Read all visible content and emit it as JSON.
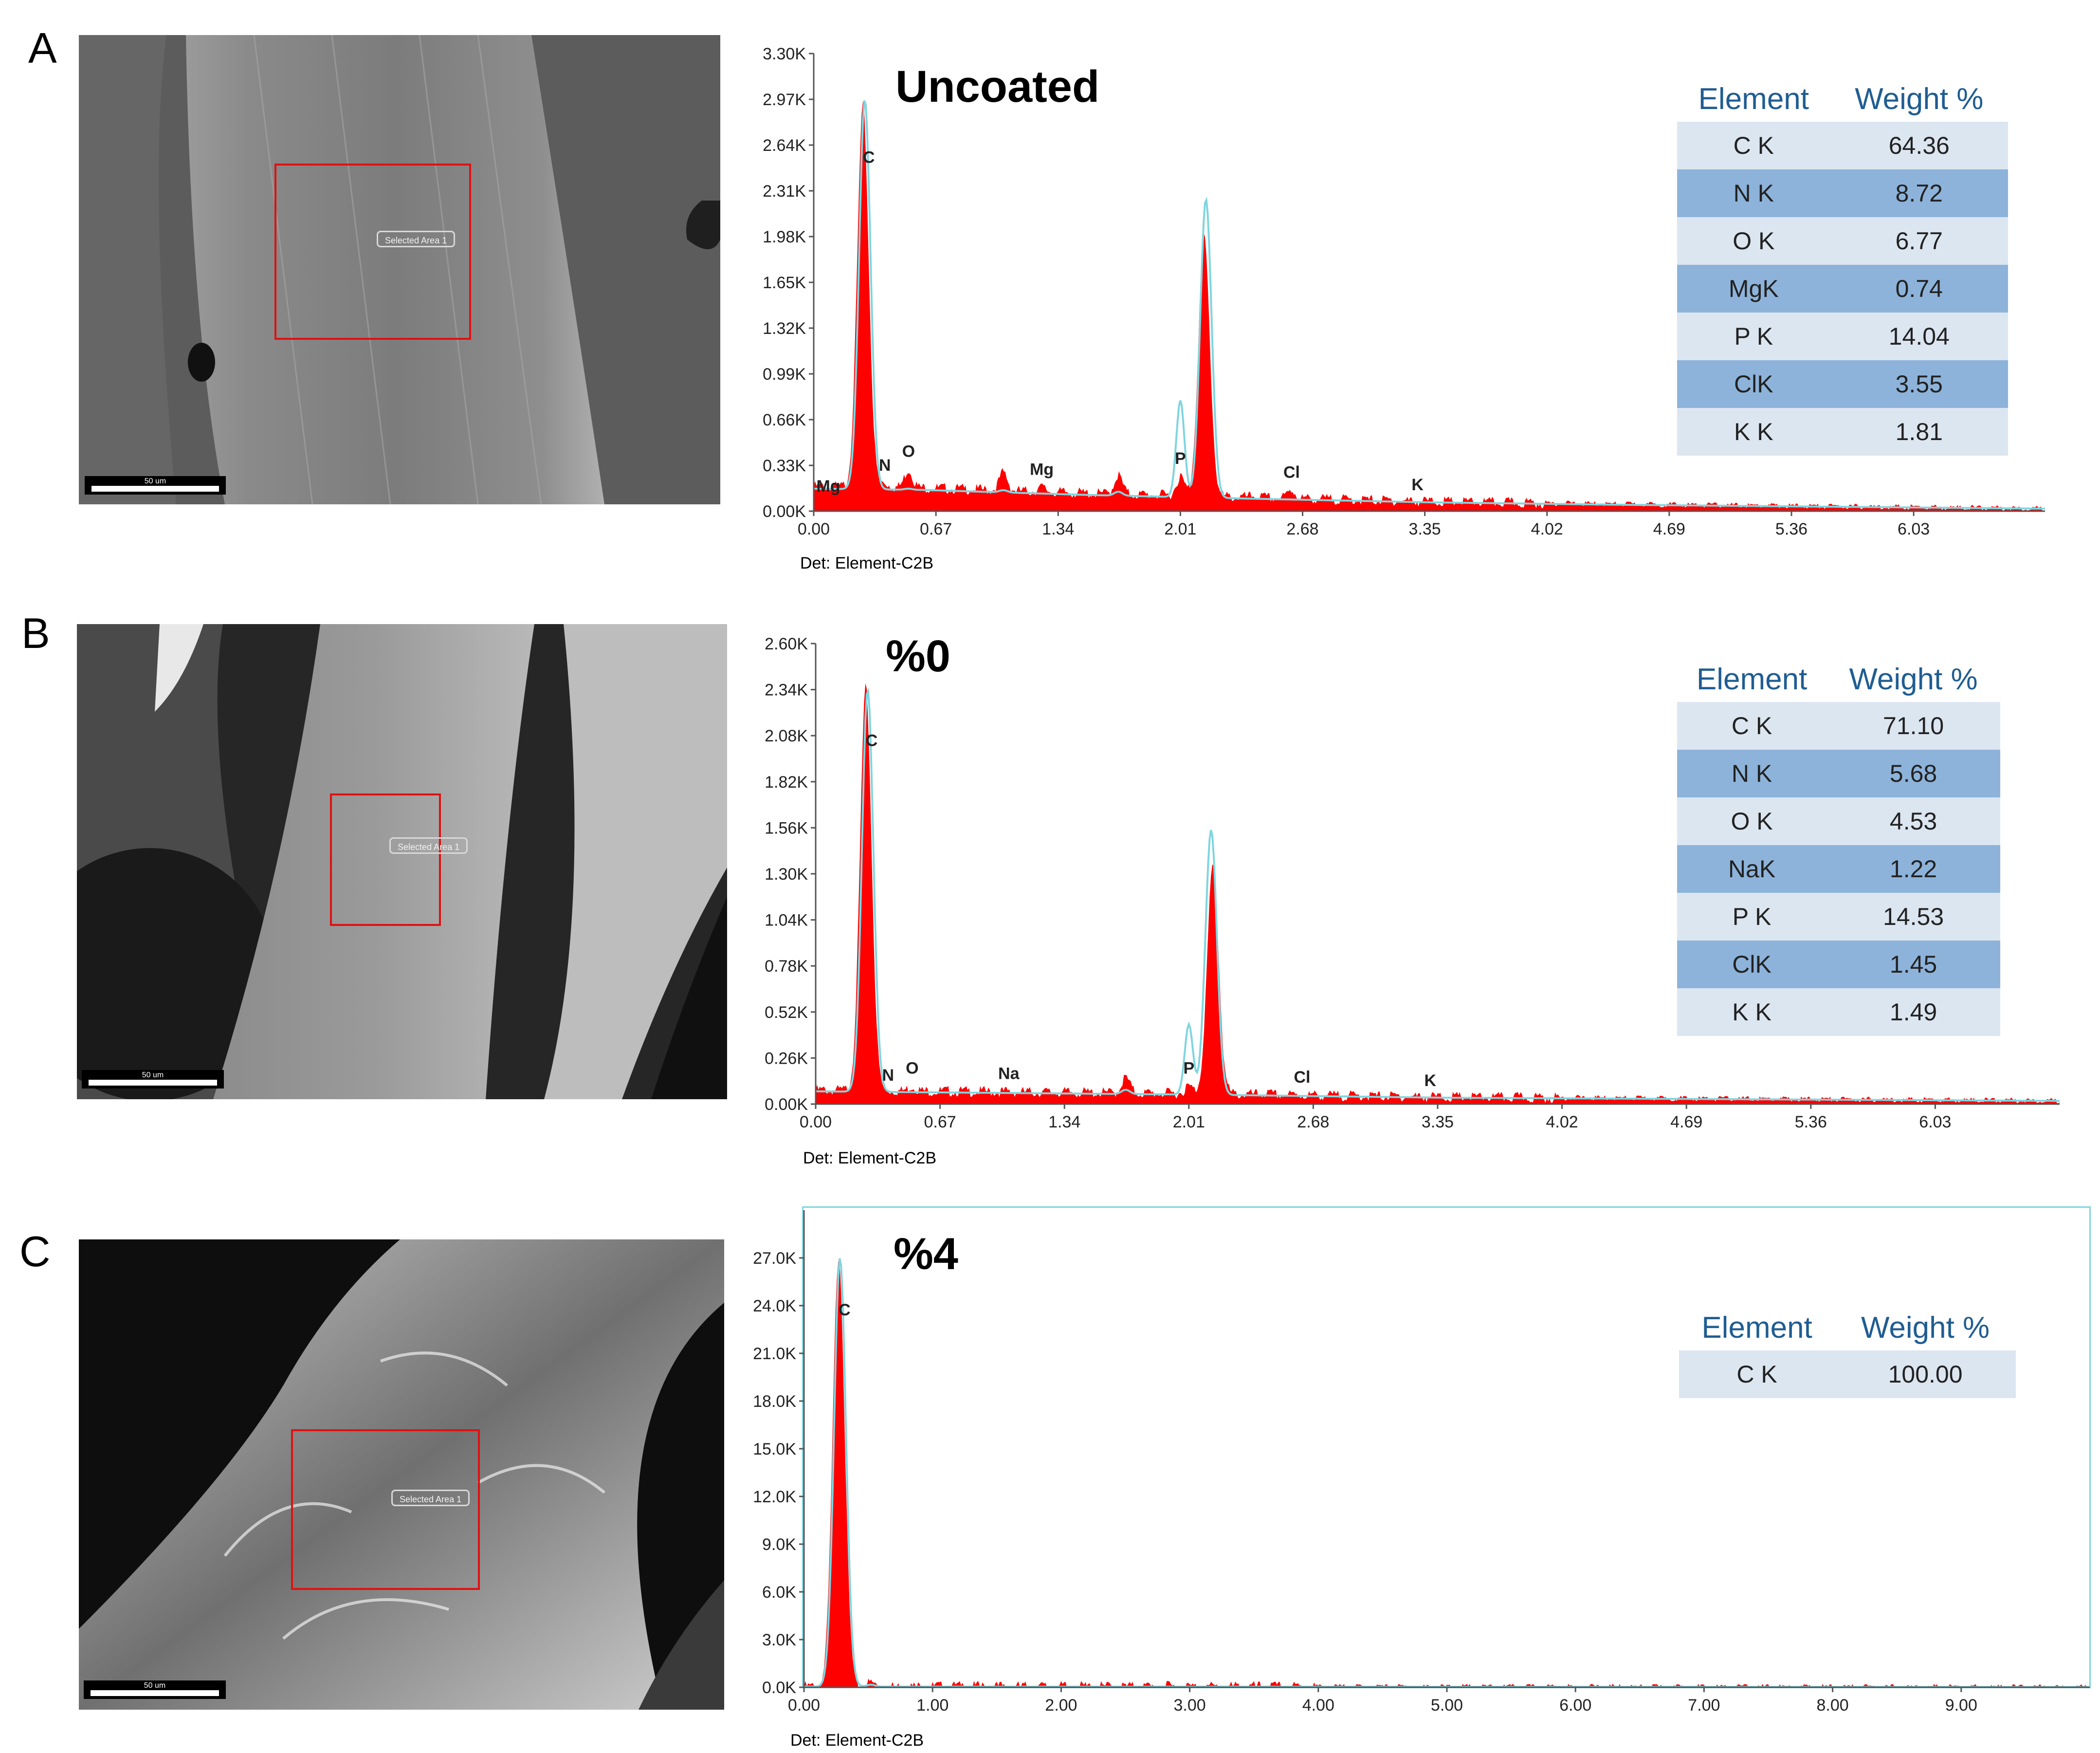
{
  "panels": [
    {
      "letter": "A",
      "sem_image": {
        "tag": "Selected Area 1",
        "scale": "50 um"
      },
      "spectrum_label": "Uncoated",
      "detector": "Det: Element-C2B",
      "table_header": {
        "element": "Element",
        "weight": "Weight %"
      },
      "table_rows": [
        {
          "element": "C K",
          "weight": "64.36"
        },
        {
          "element": "N K",
          "weight": "8.72"
        },
        {
          "element": "O K",
          "weight": "6.77"
        },
        {
          "element": "MgK",
          "weight": "0.74"
        },
        {
          "element": "P K",
          "weight": "14.04"
        },
        {
          "element": "ClK",
          "weight": "3.55"
        },
        {
          "element": "K K",
          "weight": "1.81"
        }
      ]
    },
    {
      "letter": "B",
      "sem_image": {
        "tag": "Selected Area 1",
        "scale": "50 um"
      },
      "spectrum_label": "%0",
      "detector": "Det: Element-C2B",
      "table_header": {
        "element": "Element",
        "weight": "Weight %"
      },
      "table_rows": [
        {
          "element": "C K",
          "weight": "71.10"
        },
        {
          "element": "N K",
          "weight": "5.68"
        },
        {
          "element": "O K",
          "weight": "4.53"
        },
        {
          "element": "NaK",
          "weight": "1.22"
        },
        {
          "element": "P K",
          "weight": "14.53"
        },
        {
          "element": "ClK",
          "weight": "1.45"
        },
        {
          "element": "K K",
          "weight": "1.49"
        }
      ]
    },
    {
      "letter": "C",
      "sem_image": {
        "tag": "Selected Area 1",
        "scale": "50 um"
      },
      "spectrum_label": "%4",
      "detector": "Det: Element-C2B",
      "table_header": {
        "element": "Element",
        "weight": "Weight %"
      },
      "table_rows": [
        {
          "element": "C K",
          "weight": "100.00"
        }
      ]
    }
  ],
  "colors": {
    "spectrum_fill": "#ff0000",
    "overlay_line": "#7fd5df",
    "header_text": "#1f5d92",
    "row_light": "#dce6f1",
    "row_dark": "#8db3da",
    "selection_box": "#e01010"
  },
  "chart_data": [
    {
      "type": "area",
      "title": "Uncoated",
      "xlabel": "",
      "ylabel": "",
      "xlim": [
        0,
        6.75
      ],
      "ylim": [
        0,
        3.3
      ],
      "x_ticks": [
        0.0,
        0.67,
        1.34,
        2.01,
        2.68,
        3.35,
        4.02,
        4.69,
        5.36,
        6.03
      ],
      "x_tick_labels": [
        "0.00",
        "0.67",
        "1.34",
        "2.01",
        "2.68",
        "3.35",
        "4.02",
        "4.69",
        "5.36",
        "6.03"
      ],
      "y_ticks": [
        0,
        0.33,
        0.66,
        0.99,
        1.32,
        1.65,
        1.98,
        2.31,
        2.64,
        2.97,
        3.3
      ],
      "y_tick_labels": [
        "0.00K",
        "0.33K",
        "0.66K",
        "0.99K",
        "1.32K",
        "1.65K",
        "1.98K",
        "2.31K",
        "2.64K",
        "2.97K",
        "3.30K"
      ],
      "peaks": [
        {
          "label": "Mg",
          "x": 0.08,
          "y": 0.05
        },
        {
          "label": "C",
          "x": 0.27,
          "y": 2.92
        },
        {
          "label": "N",
          "x": 0.39,
          "y": 0.2
        },
        {
          "label": "O",
          "x": 0.52,
          "y": 0.3
        },
        {
          "label": "",
          "x": 1.04,
          "y": 0.28
        },
        {
          "label": "Mg",
          "x": 1.25,
          "y": 0.17
        },
        {
          "label": "",
          "x": 1.67,
          "y": 0.26
        },
        {
          "label": "P",
          "x": 2.01,
          "y": 0.25
        },
        {
          "label": "",
          "x": 2.14,
          "y": 1.98
        },
        {
          "label": "",
          "x": 2.42,
          "y": 0.11
        },
        {
          "label": "Cl",
          "x": 2.62,
          "y": 0.15
        },
        {
          "label": "K",
          "x": 3.31,
          "y": 0.06
        }
      ],
      "overlay_peaks": [
        {
          "x": 0.28,
          "y": 3.3
        },
        {
          "x": 2.01,
          "y": 0.85
        },
        {
          "x": 2.15,
          "y": 2.5
        }
      ],
      "background": [
        [
          0,
          0.18
        ],
        [
          0.6,
          0.17
        ],
        [
          1.5,
          0.13
        ],
        [
          2.4,
          0.1
        ],
        [
          3.4,
          0.07
        ],
        [
          4.5,
          0.05
        ],
        [
          6.75,
          0.02
        ]
      ]
    },
    {
      "type": "area",
      "title": "%0",
      "xlabel": "",
      "ylabel": "",
      "xlim": [
        0,
        6.7
      ],
      "ylim": [
        0,
        2.6
      ],
      "x_ticks": [
        0.0,
        0.67,
        1.34,
        2.01,
        2.68,
        3.35,
        4.02,
        4.69,
        5.36,
        6.03
      ],
      "x_tick_labels": [
        "0.00",
        "0.67",
        "1.34",
        "2.01",
        "2.68",
        "3.35",
        "4.02",
        "4.69",
        "5.36",
        "6.03"
      ],
      "y_ticks": [
        0,
        0.26,
        0.52,
        0.78,
        1.04,
        1.3,
        1.56,
        1.82,
        2.08,
        2.34,
        2.6
      ],
      "y_tick_labels": [
        "0.00K",
        "0.26K",
        "0.52K",
        "0.78K",
        "1.04K",
        "1.30K",
        "1.56K",
        "1.82K",
        "2.08K",
        "2.34K",
        "2.60K"
      ],
      "peaks": [
        {
          "label": "C",
          "x": 0.27,
          "y": 2.35
        },
        {
          "label": "N",
          "x": 0.39,
          "y": 0.06
        },
        {
          "label": "O",
          "x": 0.52,
          "y": 0.1
        },
        {
          "label": "Na",
          "x": 1.04,
          "y": 0.07
        },
        {
          "label": "",
          "x": 1.67,
          "y": 0.15
        },
        {
          "label": "P",
          "x": 2.01,
          "y": 0.1
        },
        {
          "label": "",
          "x": 2.14,
          "y": 1.35
        },
        {
          "label": "",
          "x": 2.42,
          "y": 0.06
        },
        {
          "label": "Cl",
          "x": 2.62,
          "y": 0.05
        },
        {
          "label": "K",
          "x": 3.31,
          "y": 0.03
        }
      ],
      "overlay_peaks": [
        {
          "x": 0.28,
          "y": 2.6
        },
        {
          "x": 2.01,
          "y": 0.5
        },
        {
          "x": 2.13,
          "y": 1.72
        }
      ],
      "background": [
        [
          0,
          0.08
        ],
        [
          1.0,
          0.07
        ],
        [
          2.0,
          0.06
        ],
        [
          3.4,
          0.04
        ],
        [
          6.7,
          0.02
        ]
      ]
    },
    {
      "type": "area",
      "title": "%4",
      "xlabel": "",
      "ylabel": "",
      "xlim": [
        0,
        10
      ],
      "ylim": [
        0,
        30
      ],
      "x_ticks": [
        0,
        1,
        2,
        3,
        4,
        5,
        6,
        7,
        8,
        9
      ],
      "x_tick_labels": [
        "0.00",
        "1.00",
        "2.00",
        "3.00",
        "4.00",
        "5.00",
        "6.00",
        "7.00",
        "8.00",
        "9.00"
      ],
      "y_ticks": [
        0,
        3,
        6,
        9,
        12,
        15,
        18,
        21,
        24,
        27
      ],
      "y_tick_labels": [
        "0.0K",
        "3.0K",
        "6.0K",
        "9.0K",
        "12.0K",
        "15.0K",
        "18.0K",
        "21.0K",
        "24.0K",
        "27.0K"
      ],
      "peaks": [
        {
          "label": "C",
          "x": 0.27,
          "y": 27.2
        },
        {
          "label": "",
          "x": 0.52,
          "y": 0.3
        }
      ],
      "overlay_peaks": [
        {
          "x": 0.28,
          "y": 30
        }
      ],
      "background": [
        [
          0,
          0.05
        ],
        [
          10,
          0.02
        ]
      ]
    }
  ]
}
